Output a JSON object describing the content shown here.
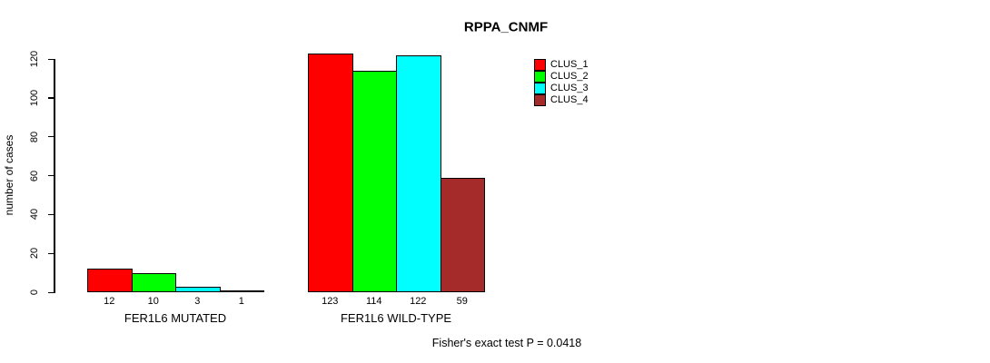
{
  "chart_data": {
    "type": "bar",
    "title": "RPPA_CNMF",
    "xlabel": "",
    "ylabel": "number of cases",
    "categories": [
      "FER1L6 MUTATED",
      "FER1L6 WILD-TYPE"
    ],
    "series": [
      {
        "name": "CLUS_1",
        "color": "#FF0000",
        "values": [
          12,
          123
        ]
      },
      {
        "name": "CLUS_2",
        "color": "#00FF00",
        "values": [
          10,
          114
        ]
      },
      {
        "name": "CLUS_3",
        "color": "#00FFFF",
        "values": [
          3,
          122
        ]
      },
      {
        "name": "CLUS_4",
        "color": "#A52A2A",
        "values": [
          1,
          59
        ]
      }
    ],
    "yticks": [
      0,
      20,
      40,
      60,
      80,
      100,
      120
    ],
    "ylim": [
      0,
      125
    ],
    "grid": false,
    "show_bar_value_labels": true,
    "legend_position": "top-right",
    "legend_labels": [
      "CLUS_1",
      "CLUS_2",
      "CLUS_3",
      "CLUS_4"
    ],
    "annotation": "Fisher's exact test P = 0.0418"
  },
  "colors": {
    "background": "#FFFFFF",
    "text": "#000000",
    "axis": "#000000",
    "bar_border": "#000000"
  }
}
